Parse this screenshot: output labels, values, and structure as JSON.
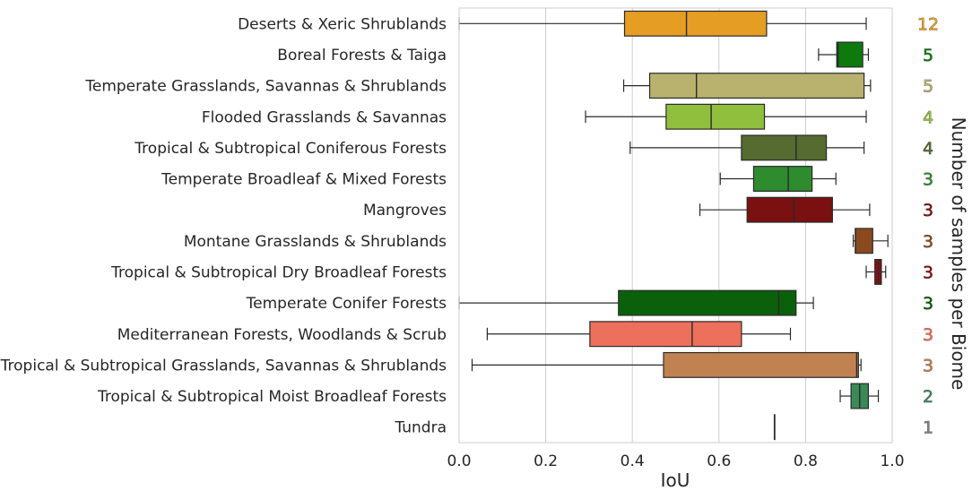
{
  "chart_data": {
    "type": "boxplot",
    "orientation": "horizontal",
    "xlabel": "IoU",
    "ylabel": "",
    "right_label": "Number of samples per Biome",
    "xlim": [
      0.0,
      1.0
    ],
    "xticks": [
      "0.0",
      "0.2",
      "0.4",
      "0.6",
      "0.8",
      "1.0"
    ],
    "xtick_values": [
      0.0,
      0.2,
      0.4,
      0.6,
      0.8,
      1.0
    ],
    "grid": "vertical",
    "biomes": [
      {
        "name": "Deserts & Xeric Shrublands",
        "count": "12",
        "color": "#e59d24",
        "whisker_low": 0.0,
        "q1": 0.382,
        "median": 0.525,
        "q3": 0.71,
        "whisker_high": 0.94
      },
      {
        "name": "Boreal Forests & Taiga",
        "count": "5",
        "color": "#0e7a0e",
        "whisker_low": 0.83,
        "q1": 0.872,
        "median": 0.875,
        "q3": 0.932,
        "whisker_high": 0.945
      },
      {
        "name": "Temperate Grasslands, Savannas & Shrublands",
        "count": "5",
        "color": "#b8b26e",
        "whisker_low": 0.38,
        "q1": 0.44,
        "median": 0.548,
        "q3": 0.935,
        "whisker_high": 0.95
      },
      {
        "name": "Flooded Grasslands & Savannas",
        "count": "4",
        "color": "#90bf3e",
        "whisker_low": 0.292,
        "q1": 0.478,
        "median": 0.582,
        "q3": 0.705,
        "whisker_high": 0.94
      },
      {
        "name": "Tropical & Subtropical Coniferous Forests",
        "count": "4",
        "color": "#556b2f",
        "whisker_low": 0.395,
        "q1": 0.652,
        "median": 0.778,
        "q3": 0.848,
        "whisker_high": 0.935
      },
      {
        "name": "Temperate Broadleaf & Mixed Forests",
        "count": "3",
        "color": "#2e8b2e",
        "whisker_low": 0.603,
        "q1": 0.68,
        "median": 0.76,
        "q3": 0.815,
        "whisker_high": 0.87
      },
      {
        "name": "Mangroves",
        "count": "3",
        "color": "#7a1010",
        "whisker_low": 0.556,
        "q1": 0.665,
        "median": 0.773,
        "q3": 0.862,
        "whisker_high": 0.948
      },
      {
        "name": "Montane Grasslands & Shrublands",
        "count": "3",
        "color": "#8b4a1e",
        "whisker_low": 0.91,
        "q1": 0.915,
        "median": 0.915,
        "q3": 0.955,
        "whisker_high": 0.99
      },
      {
        "name": "Tropical & Subtropical Dry Broadleaf Forests",
        "count": "3",
        "color": "#8b1010",
        "whisker_low": 0.94,
        "q1": 0.96,
        "median": 0.968,
        "q3": 0.975,
        "whisker_high": 0.985
      },
      {
        "name": "Temperate Conifer Forests",
        "count": "3",
        "color": "#0b600b",
        "whisker_low": 0.0,
        "q1": 0.368,
        "median": 0.738,
        "q3": 0.778,
        "whisker_high": 0.818
      },
      {
        "name": "Mediterranean Forests, Woodlands & Scrub",
        "count": "3",
        "color": "#ec705c",
        "whisker_low": 0.065,
        "q1": 0.302,
        "median": 0.538,
        "q3": 0.652,
        "whisker_high": 0.765
      },
      {
        "name": "Tropical & Subtropical Grasslands, Savannas & Shrublands",
        "count": "3",
        "color": "#c08250",
        "whisker_low": 0.03,
        "q1": 0.472,
        "median": 0.918,
        "q3": 0.922,
        "whisker_high": 0.928
      },
      {
        "name": "Tropical & Subtropical Moist Broadleaf Forests",
        "count": "2",
        "color": "#3a8a55",
        "whisker_low": 0.88,
        "q1": 0.905,
        "median": 0.925,
        "q3": 0.945,
        "whisker_high": 0.968
      },
      {
        "name": "Tundra",
        "count": "1",
        "color": "#7f7f7f",
        "whisker_low": 0.728,
        "q1": 0.728,
        "median": 0.728,
        "q3": 0.728,
        "whisker_high": 0.728
      }
    ]
  }
}
